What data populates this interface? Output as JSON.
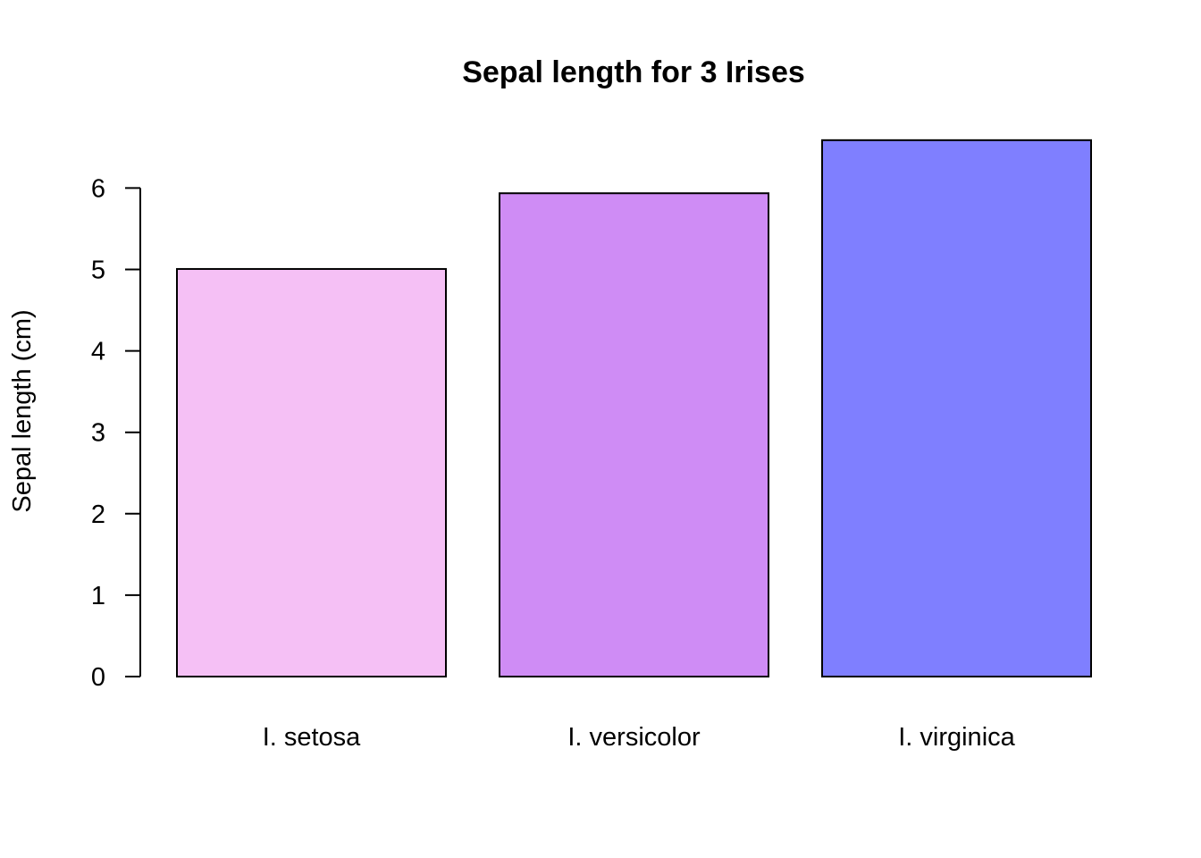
{
  "chart_data": {
    "type": "bar",
    "title": "Sepal length for 3 Irises",
    "xlabel": "",
    "ylabel": "Sepal length (cm)",
    "categories": [
      "I. setosa",
      "I. versicolor",
      "I. virginica"
    ],
    "values": [
      5.006,
      5.936,
      6.588
    ],
    "colors": [
      "#F5C0F5",
      "#CF8CF5",
      "#7F7FFF"
    ],
    "yticks": [
      "0",
      "1",
      "2",
      "3",
      "4",
      "5",
      "6"
    ],
    "ylim": [
      0,
      6.6
    ],
    "grid": false,
    "legend": "none"
  }
}
